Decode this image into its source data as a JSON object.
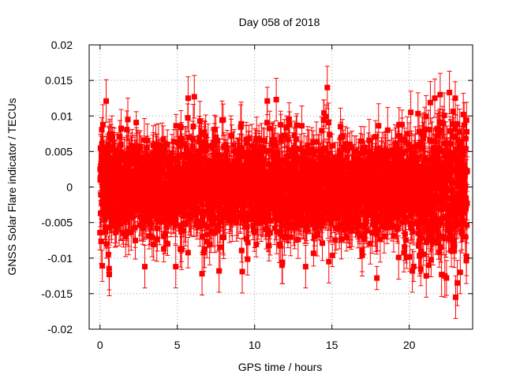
{
  "chart_data": {
    "type": "scatter",
    "title": "Day 058 of 2018",
    "xlabel": "GPS time / hours",
    "ylabel": "GNSS Solar Flare indicator / TECUs",
    "xlim": [
      -0.7,
      24.1
    ],
    "ylim": [
      -0.02,
      0.02
    ],
    "x_ticks": [
      0,
      5,
      10,
      15,
      20
    ],
    "x_tick_labels": [
      "0",
      "5",
      "10",
      "15",
      "20"
    ],
    "y_ticks": [
      -0.02,
      -0.015,
      -0.01,
      -0.005,
      0,
      0.005,
      0.01,
      0.015,
      0.02
    ],
    "y_tick_labels": [
      "-0.02",
      "-0.015",
      "-0.01",
      "-0.005",
      "0",
      "0.005",
      "0.01",
      "0.015",
      "0.02"
    ],
    "grid": true,
    "marker": "square",
    "error_bars": true,
    "series_color": "#ff0000",
    "series": [
      {
        "name": "solar flare indicator",
        "x_start": 0.0,
        "x_end": 23.75,
        "n_points": 2850,
        "typical_spread": 0.0035,
        "typical_error": 0.0025,
        "notable_points": [
          {
            "x": 14.7,
            "y": 0.014
          },
          {
            "x": 23.0,
            "y": -0.0155
          },
          {
            "x": 22.3,
            "y": -0.0125
          },
          {
            "x": 0.6,
            "y": -0.0123
          },
          {
            "x": 6.6,
            "y": -0.0122
          },
          {
            "x": 6.1,
            "y": 0.0127
          },
          {
            "x": 5.7,
            "y": 0.0125
          },
          {
            "x": 11.4,
            "y": 0.0123
          },
          {
            "x": 22.0,
            "y": 0.013
          },
          {
            "x": 0.4,
            "y": 0.0121
          },
          {
            "x": 20.2,
            "y": -0.0118
          },
          {
            "x": 20.1,
            "y": 0.0105
          },
          {
            "x": 23.5,
            "y": 0.0102
          },
          {
            "x": 22.6,
            "y": 0.0133
          },
          {
            "x": 1.8,
            "y": 0.0095
          },
          {
            "x": 2.9,
            "y": -0.0112
          },
          {
            "x": 4.9,
            "y": -0.0112
          },
          {
            "x": 7.7,
            "y": -0.0118
          },
          {
            "x": 9.2,
            "y": -0.0119
          },
          {
            "x": 11.8,
            "y": -0.0106
          },
          {
            "x": 13.3,
            "y": -0.0112
          },
          {
            "x": 14.8,
            "y": -0.0105
          },
          {
            "x": 21.1,
            "y": -0.0125
          },
          {
            "x": 23.3,
            "y": -0.012
          }
        ]
      }
    ]
  }
}
